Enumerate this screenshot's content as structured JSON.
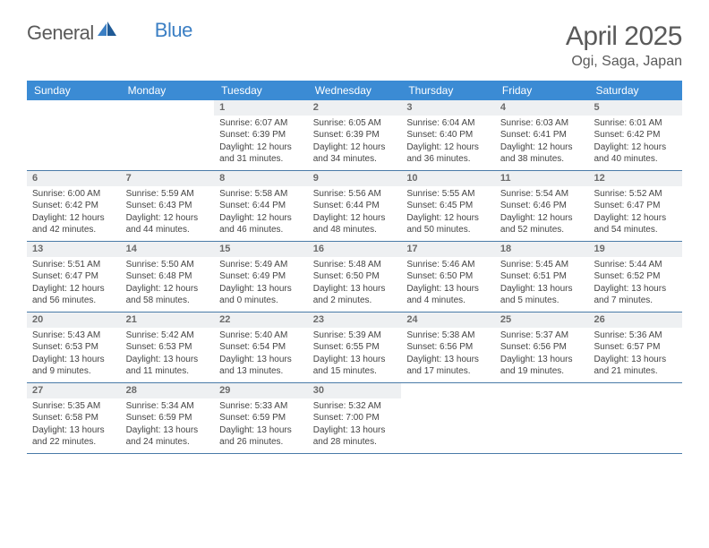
{
  "brand": {
    "part1": "General",
    "part2": "Blue"
  },
  "title": "April 2025",
  "location": "Ogi, Saga, Japan",
  "colors": {
    "header_bg": "#3b8bd4",
    "header_text": "#ffffff",
    "daynum_bg": "#eef0f2",
    "daynum_text": "#6a6a6a",
    "body_text": "#444444",
    "rule": "#4a7ba8",
    "title_text": "#5a5a5a",
    "logo_blue": "#3b7fc4"
  },
  "day_headers": [
    "Sunday",
    "Monday",
    "Tuesday",
    "Wednesday",
    "Thursday",
    "Friday",
    "Saturday"
  ],
  "weeks": [
    [
      {
        "blank": true
      },
      {
        "blank": true
      },
      {
        "n": "1",
        "sunrise": "6:07 AM",
        "sunset": "6:39 PM",
        "dl_h": 12,
        "dl_m": 31
      },
      {
        "n": "2",
        "sunrise": "6:05 AM",
        "sunset": "6:39 PM",
        "dl_h": 12,
        "dl_m": 34
      },
      {
        "n": "3",
        "sunrise": "6:04 AM",
        "sunset": "6:40 PM",
        "dl_h": 12,
        "dl_m": 36
      },
      {
        "n": "4",
        "sunrise": "6:03 AM",
        "sunset": "6:41 PM",
        "dl_h": 12,
        "dl_m": 38
      },
      {
        "n": "5",
        "sunrise": "6:01 AM",
        "sunset": "6:42 PM",
        "dl_h": 12,
        "dl_m": 40
      }
    ],
    [
      {
        "n": "6",
        "sunrise": "6:00 AM",
        "sunset": "6:42 PM",
        "dl_h": 12,
        "dl_m": 42
      },
      {
        "n": "7",
        "sunrise": "5:59 AM",
        "sunset": "6:43 PM",
        "dl_h": 12,
        "dl_m": 44
      },
      {
        "n": "8",
        "sunrise": "5:58 AM",
        "sunset": "6:44 PM",
        "dl_h": 12,
        "dl_m": 46
      },
      {
        "n": "9",
        "sunrise": "5:56 AM",
        "sunset": "6:44 PM",
        "dl_h": 12,
        "dl_m": 48
      },
      {
        "n": "10",
        "sunrise": "5:55 AM",
        "sunset": "6:45 PM",
        "dl_h": 12,
        "dl_m": 50
      },
      {
        "n": "11",
        "sunrise": "5:54 AM",
        "sunset": "6:46 PM",
        "dl_h": 12,
        "dl_m": 52
      },
      {
        "n": "12",
        "sunrise": "5:52 AM",
        "sunset": "6:47 PM",
        "dl_h": 12,
        "dl_m": 54
      }
    ],
    [
      {
        "n": "13",
        "sunrise": "5:51 AM",
        "sunset": "6:47 PM",
        "dl_h": 12,
        "dl_m": 56
      },
      {
        "n": "14",
        "sunrise": "5:50 AM",
        "sunset": "6:48 PM",
        "dl_h": 12,
        "dl_m": 58
      },
      {
        "n": "15",
        "sunrise": "5:49 AM",
        "sunset": "6:49 PM",
        "dl_h": 13,
        "dl_m": 0
      },
      {
        "n": "16",
        "sunrise": "5:48 AM",
        "sunset": "6:50 PM",
        "dl_h": 13,
        "dl_m": 2
      },
      {
        "n": "17",
        "sunrise": "5:46 AM",
        "sunset": "6:50 PM",
        "dl_h": 13,
        "dl_m": 4
      },
      {
        "n": "18",
        "sunrise": "5:45 AM",
        "sunset": "6:51 PM",
        "dl_h": 13,
        "dl_m": 5
      },
      {
        "n": "19",
        "sunrise": "5:44 AM",
        "sunset": "6:52 PM",
        "dl_h": 13,
        "dl_m": 7
      }
    ],
    [
      {
        "n": "20",
        "sunrise": "5:43 AM",
        "sunset": "6:53 PM",
        "dl_h": 13,
        "dl_m": 9
      },
      {
        "n": "21",
        "sunrise": "5:42 AM",
        "sunset": "6:53 PM",
        "dl_h": 13,
        "dl_m": 11
      },
      {
        "n": "22",
        "sunrise": "5:40 AM",
        "sunset": "6:54 PM",
        "dl_h": 13,
        "dl_m": 13
      },
      {
        "n": "23",
        "sunrise": "5:39 AM",
        "sunset": "6:55 PM",
        "dl_h": 13,
        "dl_m": 15
      },
      {
        "n": "24",
        "sunrise": "5:38 AM",
        "sunset": "6:56 PM",
        "dl_h": 13,
        "dl_m": 17
      },
      {
        "n": "25",
        "sunrise": "5:37 AM",
        "sunset": "6:56 PM",
        "dl_h": 13,
        "dl_m": 19
      },
      {
        "n": "26",
        "sunrise": "5:36 AM",
        "sunset": "6:57 PM",
        "dl_h": 13,
        "dl_m": 21
      }
    ],
    [
      {
        "n": "27",
        "sunrise": "5:35 AM",
        "sunset": "6:58 PM",
        "dl_h": 13,
        "dl_m": 22
      },
      {
        "n": "28",
        "sunrise": "5:34 AM",
        "sunset": "6:59 PM",
        "dl_h": 13,
        "dl_m": 24
      },
      {
        "n": "29",
        "sunrise": "5:33 AM",
        "sunset": "6:59 PM",
        "dl_h": 13,
        "dl_m": 26
      },
      {
        "n": "30",
        "sunrise": "5:32 AM",
        "sunset": "7:00 PM",
        "dl_h": 13,
        "dl_m": 28
      },
      {
        "blank": true
      },
      {
        "blank": true
      },
      {
        "blank": true
      }
    ]
  ],
  "labels": {
    "sunrise": "Sunrise:",
    "sunset": "Sunset:",
    "daylight": "Daylight:",
    "hours": "hours",
    "and": "and",
    "minutes": "minutes."
  }
}
